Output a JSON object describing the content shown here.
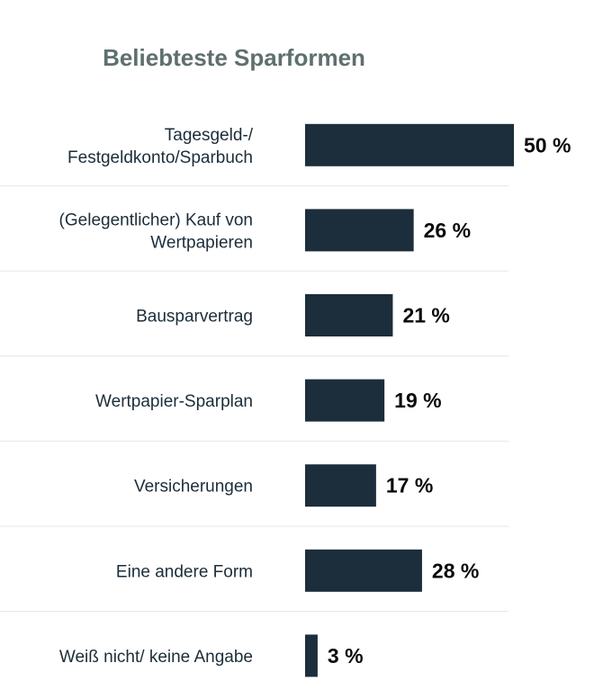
{
  "chart_data": {
    "type": "bar",
    "orientation": "horizontal",
    "title": "Beliebteste Sparformen",
    "categories": [
      [
        "Tagesgeld-/",
        "Festgeldkonto/Sparbuch"
      ],
      [
        "(Gelegentlicher) Kauf von",
        "Wertpapieren"
      ],
      [
        "Bausparvertrag"
      ],
      [
        "Wertpapier-Sparplan"
      ],
      [
        "Versicherungen"
      ],
      [
        "Eine andere Form"
      ],
      [
        "Weiß nicht/ keine Angabe"
      ]
    ],
    "values": [
      50,
      26,
      21,
      19,
      17,
      28,
      3
    ],
    "value_labels": [
      "50 %",
      "26 %",
      "21 %",
      "19 %",
      "17 %",
      "28 %",
      "3 %"
    ],
    "unit": "%",
    "xlim": [
      0,
      50
    ],
    "grid": false,
    "colors": {
      "bar": "#1c2d3b",
      "title": "#5f6f6f",
      "divider": "#e6e6e6"
    }
  }
}
